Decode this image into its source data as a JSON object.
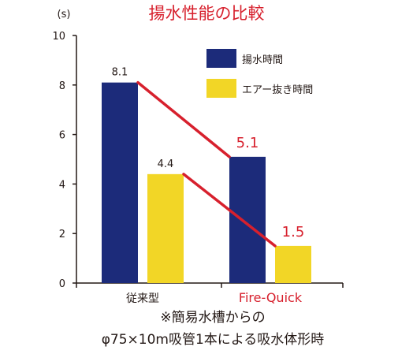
{
  "colors": {
    "pumping": "#1c2b7a",
    "air_removal": "#f2d626",
    "trend_line": "#d7202d",
    "title": "#d7202d",
    "highlight_label": "#d7202d",
    "axis": "#231815",
    "text": "#231815"
  },
  "chart_data": {
    "type": "bar",
    "title": "揚水性能の比較",
    "ylabel": "(s)",
    "xlabel": "",
    "ylim": [
      0,
      10
    ],
    "yticks": [
      "0",
      "2",
      "4",
      "6",
      "8",
      "10"
    ],
    "categories": [
      "従来型",
      "Fire-Quick"
    ],
    "highlight_category": "Fire-Quick",
    "series": [
      {
        "name": "揚水時間",
        "values": [
          8.1,
          5.1
        ],
        "labels": [
          "8.1",
          "5.1"
        ]
      },
      {
        "name": "エアー抜き時間",
        "values": [
          4.4,
          1.5
        ],
        "labels": [
          "4.4",
          "1.5"
        ]
      }
    ],
    "trend_lines": true,
    "legend_position": "top-right",
    "grid": false,
    "footnote": [
      "※簡易水槽からの",
      "φ75×10m吸管1本による吸水体形時"
    ]
  }
}
